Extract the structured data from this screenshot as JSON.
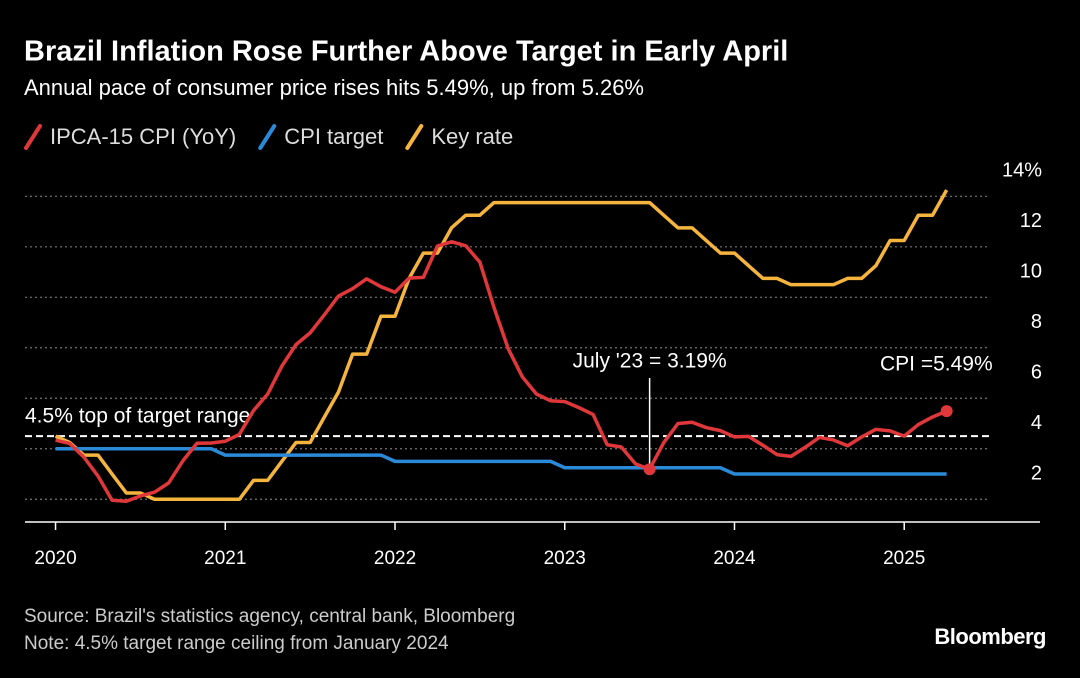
{
  "chart_data": {
    "type": "line",
    "title": "Brazil Inflation Rose Further Above Target in Early April",
    "subtitle": "Annual pace of consumer price rises hits 5.49%, up from 5.26%",
    "source": "Source: Brazil's statistics agency, central bank, Bloomberg",
    "note": "Note: 4.5% target range ceiling from January 2024",
    "brand": "Bloomberg",
    "x": [
      2020,
      2020.083,
      2020.167,
      2020.25,
      2020.333,
      2020.417,
      2020.5,
      2020.583,
      2020.667,
      2020.75,
      2020.833,
      2020.917,
      2021,
      2021.083,
      2021.167,
      2021.25,
      2021.333,
      2021.417,
      2021.5,
      2021.583,
      2021.667,
      2021.75,
      2021.833,
      2021.917,
      2022,
      2022.083,
      2022.167,
      2022.25,
      2022.333,
      2022.417,
      2022.5,
      2022.583,
      2022.667,
      2022.75,
      2022.833,
      2022.917,
      2023,
      2023.083,
      2023.167,
      2023.25,
      2023.333,
      2023.417,
      2023.5,
      2023.583,
      2023.667,
      2023.75,
      2023.833,
      2023.917,
      2024,
      2024.083,
      2024.167,
      2024.25,
      2024.333,
      2024.417,
      2024.5,
      2024.583,
      2024.667,
      2024.75,
      2024.833,
      2024.917,
      2025,
      2025.083,
      2025.167,
      2025.25
    ],
    "series": [
      {
        "name": "IPCA-15 CPI (YoY)",
        "color": "#e0383a",
        "values": [
          4.34,
          4.21,
          3.67,
          2.92,
          1.96,
          1.92,
          2.13,
          2.28,
          2.65,
          3.52,
          4.22,
          4.23,
          4.3,
          4.57,
          5.52,
          6.17,
          7.27,
          8.13,
          8.59,
          9.3,
          10.05,
          10.34,
          10.73,
          10.42,
          10.2,
          10.76,
          10.79,
          12.03,
          12.2,
          12.04,
          11.39,
          9.6,
          7.96,
          6.85,
          6.17,
          5.9,
          5.87,
          5.63,
          5.36,
          4.16,
          4.07,
          3.4,
          3.19,
          4.24,
          5.0,
          5.05,
          4.84,
          4.72,
          4.47,
          4.49,
          4.14,
          3.77,
          3.7,
          4.06,
          4.45,
          4.35,
          4.12,
          4.47,
          4.77,
          4.71,
          4.5,
          4.96,
          5.26,
          5.49
        ]
      },
      {
        "name": "CPI target",
        "color": "#2b8ad8",
        "values": [
          4,
          4,
          4,
          4,
          4,
          4,
          4,
          4,
          4,
          4,
          4,
          4,
          3.75,
          3.75,
          3.75,
          3.75,
          3.75,
          3.75,
          3.75,
          3.75,
          3.75,
          3.75,
          3.75,
          3.75,
          3.5,
          3.5,
          3.5,
          3.5,
          3.5,
          3.5,
          3.5,
          3.5,
          3.5,
          3.5,
          3.5,
          3.5,
          3.25,
          3.25,
          3.25,
          3.25,
          3.25,
          3.25,
          3.25,
          3.25,
          3.25,
          3.25,
          3.25,
          3.25,
          3,
          3,
          3,
          3,
          3,
          3,
          3,
          3,
          3,
          3,
          3,
          3,
          3,
          3,
          3,
          3
        ]
      },
      {
        "name": "Key rate",
        "color": "#f4b43e",
        "values": [
          4.5,
          4.25,
          3.75,
          3.75,
          3,
          2.25,
          2.25,
          2,
          2,
          2,
          2,
          2,
          2,
          2,
          2.75,
          2.75,
          3.5,
          4.25,
          4.25,
          5.25,
          6.25,
          7.75,
          7.75,
          9.25,
          9.25,
          10.75,
          11.75,
          11.75,
          12.75,
          13.25,
          13.25,
          13.75,
          13.75,
          13.75,
          13.75,
          13.75,
          13.75,
          13.75,
          13.75,
          13.75,
          13.75,
          13.75,
          13.75,
          13.25,
          12.75,
          12.75,
          12.25,
          11.75,
          11.75,
          11.25,
          10.75,
          10.75,
          10.5,
          10.5,
          10.5,
          10.5,
          10.75,
          10.75,
          11.25,
          12.25,
          12.25,
          13.25,
          13.25,
          14.25
        ]
      }
    ],
    "xlim": [
      2019.82,
      2025.8
    ],
    "xticks": [
      2020,
      2021,
      2022,
      2023,
      2024,
      2025
    ],
    "ylim": [
      1.1,
      15.2
    ],
    "yticks": [
      2,
      4,
      6,
      8,
      10,
      12,
      {
        "value": 14,
        "label": "14%"
      }
    ],
    "grid": true,
    "reference_line": {
      "value": 4.5,
      "label": "4.5% top of target range"
    },
    "annotations": [
      {
        "text": "July '23 = 3.19%",
        "series": 0,
        "index": 42
      },
      {
        "text": "CPI =5.49%",
        "series": 0,
        "index": 63
      }
    ]
  }
}
